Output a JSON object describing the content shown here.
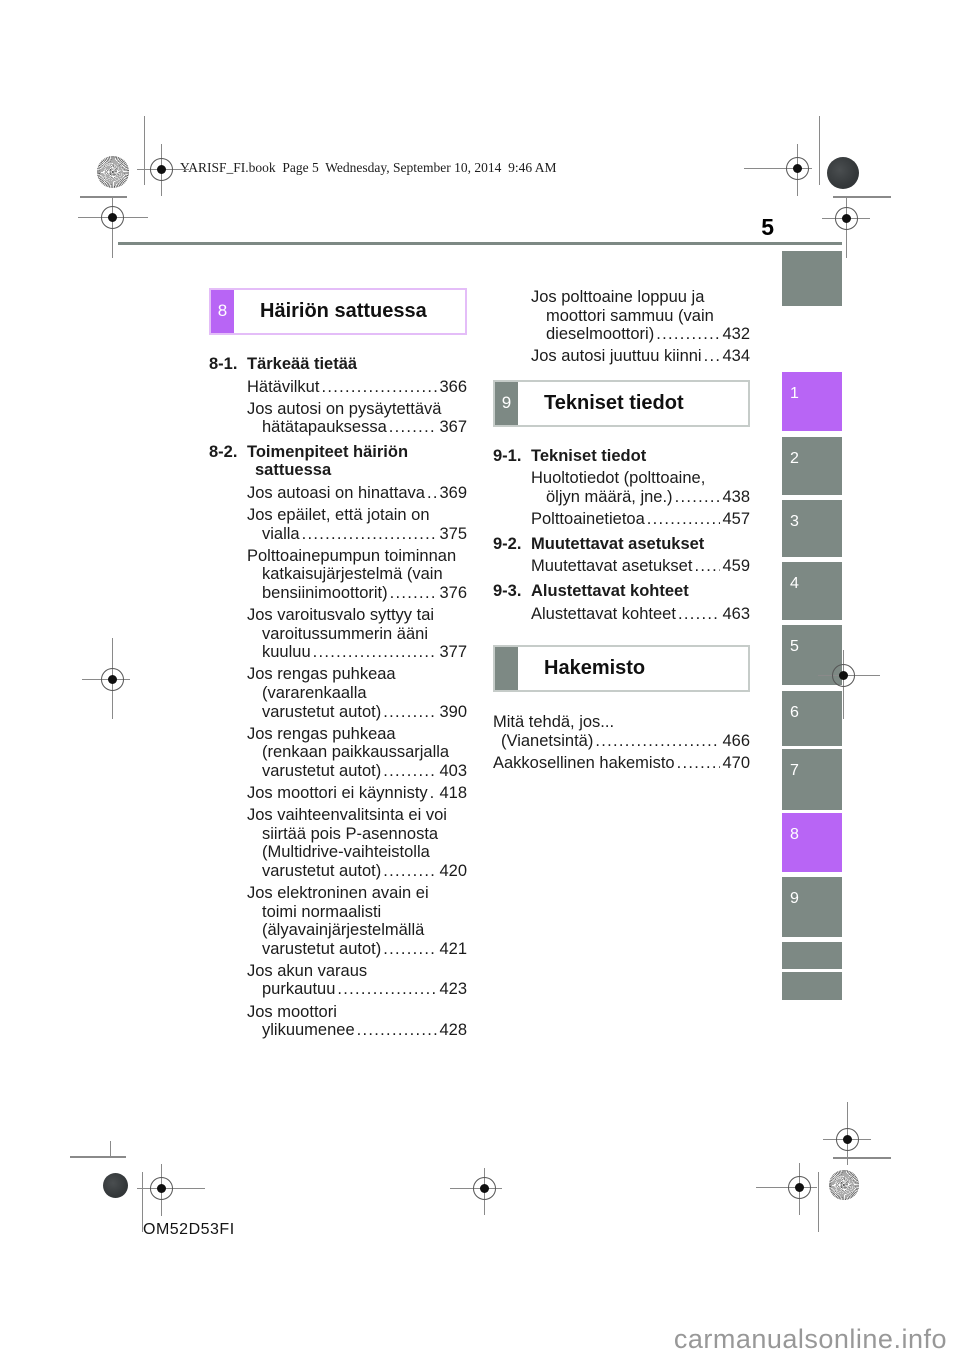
{
  "meta": {
    "header_line": "YARISF_FI.book  Page 5  Wednesday, September 10, 2014  9:46 AM",
    "page_number": "5",
    "footer_code": "OM52D53FI",
    "watermark": "carmanualsonline.info"
  },
  "colors": {
    "accent_purple": "#b865f5",
    "accent_purple_light": "#e4bdf8",
    "tab_gray": "#7d8984",
    "box_border_gray": "#c6ccc9",
    "text": "#1b1b1b",
    "watermark_gray": "#989898"
  },
  "left_column": {
    "section_box": {
      "number": "8",
      "title": "Häiriön sattuessa"
    },
    "groups": [
      {
        "label": "8-1.",
        "title": [
          "Tärkeää tietää"
        ],
        "entries": [
          {
            "lines": [
              "Hätävilkut"
            ],
            "page": "366"
          },
          {
            "lines": [
              "Jos autosi on pysäytettävä",
              "hätätapauksessa"
            ],
            "page": "367"
          }
        ]
      },
      {
        "label": "8-2.",
        "title": [
          "Toimenpiteet häiriön",
          "sattuessa"
        ],
        "entries": [
          {
            "lines": [
              "Jos autoasi on hinattava"
            ],
            "page": "369"
          },
          {
            "lines": [
              "Jos epäilet, että jotain on",
              "vialla"
            ],
            "page": "375"
          },
          {
            "lines": [
              "Polttoainepumpun toiminnan",
              "katkaisujärjestelmä (vain",
              "bensiinimoottorit)"
            ],
            "page": "376"
          },
          {
            "lines": [
              "Jos varoitusvalo syttyy tai",
              "varoitussummerin ääni",
              "kuuluu"
            ],
            "page": "377"
          },
          {
            "lines": [
              "Jos rengas puhkeaa",
              "(vararenkaalla",
              "varustetut autot)"
            ],
            "page": "390"
          },
          {
            "lines": [
              "Jos rengas puhkeaa",
              "(renkaan paikkaussarjalla",
              "varustetut autot)"
            ],
            "page": "403"
          },
          {
            "lines": [
              "Jos moottori ei käynnisty"
            ],
            "page": "418"
          },
          {
            "lines": [
              "Jos vaihteenvalitsinta ei voi",
              "siirtää pois P-asennosta",
              "(Multidrive-vaihteistolla",
              "varustetut autot)"
            ],
            "page": "420"
          },
          {
            "lines": [
              "Jos elektroninen avain ei",
              "toimi normaalisti",
              "(älyavainjärjestelmällä",
              "varustetut autot)"
            ],
            "page": "421"
          },
          {
            "lines": [
              "Jos akun varaus",
              "purkautuu"
            ],
            "page": "423"
          },
          {
            "lines": [
              "Jos moottori",
              "ylikuumenee"
            ],
            "page": "428"
          }
        ]
      }
    ]
  },
  "right_column": {
    "carry_entries": [
      {
        "lines": [
          "Jos polttoaine loppuu ja",
          "moottori sammuu (vain",
          "dieselmoottori)"
        ],
        "page": "432"
      },
      {
        "lines": [
          "Jos autosi juuttuu kiinni"
        ],
        "page": "434"
      }
    ],
    "section_box": {
      "number": "9",
      "title": "Tekniset tiedot"
    },
    "groups": [
      {
        "label": "9-1.",
        "title": [
          "Tekniset tiedot"
        ],
        "entries": [
          {
            "lines": [
              "Huoltotiedot (polttoaine,",
              "öljyn määrä, jne.)"
            ],
            "page": "438"
          },
          {
            "lines": [
              "Polttoainetietoa"
            ],
            "page": "457"
          }
        ]
      },
      {
        "label": "9-2.",
        "title": [
          "Muutettavat asetukset"
        ],
        "entries": [
          {
            "lines": [
              "Muutettavat asetukset"
            ],
            "page": "459"
          }
        ]
      },
      {
        "label": "9-3.",
        "title": [
          "Alustettavat kohteet"
        ],
        "entries": [
          {
            "lines": [
              "Alustettavat kohteet"
            ],
            "page": "463"
          }
        ]
      }
    ],
    "index_box": {
      "title": "Hakemisto"
    },
    "index_entries": [
      {
        "lines": [
          "Mitä tehdä, jos...",
          "(Vianetsintä)"
        ],
        "page": "466"
      },
      {
        "lines": [
          "Aakkosellinen hakemisto"
        ],
        "page": "470"
      }
    ]
  },
  "tab_rail": {
    "tabs": [
      {
        "label": "1",
        "active": true
      },
      {
        "label": "2",
        "active": false
      },
      {
        "label": "3",
        "active": false
      },
      {
        "label": "4",
        "active": false
      },
      {
        "label": "5",
        "active": false
      },
      {
        "label": "6",
        "active": false
      },
      {
        "label": "7",
        "active": false
      },
      {
        "label": "8",
        "active": true
      },
      {
        "label": "9",
        "active": false
      }
    ]
  }
}
